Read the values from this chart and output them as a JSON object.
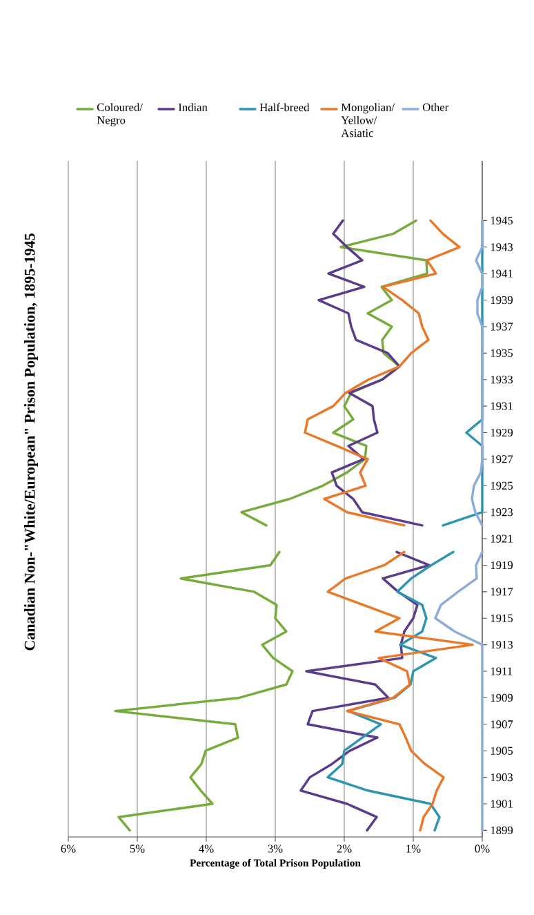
{
  "chart_data": {
    "type": "line",
    "title": "Canadian Non-\"White/European\" Prison Population, 1895-1945",
    "xlabel": "Percentage of Total Prison Population",
    "orientation": "horizontal",
    "x": [
      1899,
      1900,
      1901,
      1902,
      1903,
      1904,
      1905,
      1906,
      1907,
      1908,
      1909,
      1910,
      1911,
      1912,
      1913,
      1914,
      1915,
      1916,
      1917,
      1918,
      1919,
      1920,
      1921,
      1922,
      1923,
      1924,
      1925,
      1926,
      1927,
      1928,
      1929,
      1930,
      1931,
      1932,
      1933,
      1934,
      1935,
      1936,
      1937,
      1938,
      1939,
      1940,
      1941,
      1942,
      1943,
      1944,
      1945
    ],
    "series": [
      {
        "name": "Coloured/ Negro",
        "color": "#77ab3c",
        "values": [
          5.11,
          5.27,
          3.91,
          4.08,
          4.23,
          4.07,
          4.01,
          3.54,
          3.58,
          5.32,
          3.52,
          2.84,
          2.75,
          3.03,
          3.19,
          2.84,
          3.0,
          2.98,
          3.31,
          4.37,
          3.07,
          2.94,
          null,
          3.13,
          3.49,
          2.79,
          2.31,
          1.96,
          1.7,
          1.68,
          2.16,
          1.87,
          2.0,
          1.9,
          1.45,
          1.2,
          1.43,
          1.45,
          1.31,
          1.66,
          1.31,
          1.46,
          0.8,
          0.81,
          2.05,
          1.29,
          0.96
        ]
      },
      {
        "name": "Indian",
        "color": "#5b3b8c",
        "values": [
          1.67,
          1.53,
          1.96,
          2.63,
          2.5,
          2.18,
          1.92,
          1.52,
          2.53,
          2.46,
          1.36,
          1.55,
          2.55,
          1.16,
          1.18,
          1.13,
          1.0,
          0.94,
          1.22,
          1.44,
          0.77,
          1.24,
          null,
          0.87,
          1.74,
          1.87,
          2.11,
          2.18,
          1.72,
          1.94,
          1.52,
          1.57,
          1.59,
          1.93,
          1.45,
          1.2,
          1.37,
          1.83,
          1.9,
          1.94,
          2.37,
          1.71,
          2.23,
          1.74,
          1.96,
          2.16,
          2.02
        ]
      },
      {
        "name": "Half-breed",
        "color": "#2e95b0",
        "values": [
          0.69,
          0.62,
          0.75,
          1.66,
          2.24,
          2.03,
          2.0,
          1.74,
          1.47,
          1.94,
          1.27,
          1.04,
          1.0,
          0.67,
          1.19,
          0.87,
          0.81,
          0.87,
          1.23,
          1.03,
          0.74,
          0.42,
          null,
          0.57,
          0,
          0,
          0,
          0,
          0,
          0,
          0.23,
          0,
          0,
          0,
          0,
          0,
          0,
          0,
          0,
          0,
          0,
          0,
          0,
          0,
          0,
          0,
          0
        ]
      },
      {
        "name": "Mongolian/ Yellow/ Asiatic",
        "color": "#e8792b",
        "values": [
          0.9,
          0.85,
          0.72,
          0.66,
          0.56,
          0.83,
          1.03,
          1.11,
          1.2,
          1.96,
          1.29,
          1.05,
          1.09,
          1.5,
          0.14,
          1.55,
          1.2,
          1.72,
          2.24,
          1.98,
          1.42,
          1.13,
          null,
          1.13,
          1.96,
          2.29,
          1.69,
          1.77,
          1.66,
          2.11,
          2.57,
          2.53,
          2.16,
          1.98,
          1.65,
          1.2,
          1.03,
          0.78,
          0.87,
          0.92,
          1.16,
          1.44,
          0.67,
          0.8,
          0.33,
          0.57,
          0.75
        ]
      },
      {
        "name": "Other",
        "color": "#8eacd8",
        "values": [
          0,
          0,
          0,
          0,
          0,
          0,
          0,
          0,
          0,
          0,
          0,
          0,
          0,
          0,
          0,
          0.4,
          0.68,
          0.6,
          0.35,
          0.08,
          0.09,
          0,
          null,
          0,
          0.1,
          0.15,
          0.12,
          0.02,
          0,
          0,
          0,
          0,
          0,
          0,
          0,
          0,
          0,
          0,
          0,
          0.07,
          0.07,
          0,
          0,
          0.09,
          0,
          0,
          0
        ]
      }
    ],
    "xlim": [
      6,
      0
    ],
    "xticks": [
      {
        "value": 0,
        "label": "0%"
      },
      {
        "value": 1,
        "label": "1%"
      },
      {
        "value": 2,
        "label": "2%"
      },
      {
        "value": 3,
        "label": "3%"
      },
      {
        "value": 4,
        "label": "4%"
      },
      {
        "value": 5,
        "label": "5%"
      },
      {
        "value": 6,
        "label": "6%"
      }
    ],
    "ylim": [
      1898.5,
      1949.5
    ],
    "yticks": [
      1899,
      1901,
      1903,
      1905,
      1907,
      1909,
      1911,
      1913,
      1915,
      1917,
      1919,
      1921,
      1923,
      1925,
      1927,
      1929,
      1931,
      1933,
      1935,
      1937,
      1939,
      1941,
      1943,
      1945
    ],
    "grid": "x",
    "legend": "top",
    "marker": "none",
    "line_style": "solid"
  }
}
